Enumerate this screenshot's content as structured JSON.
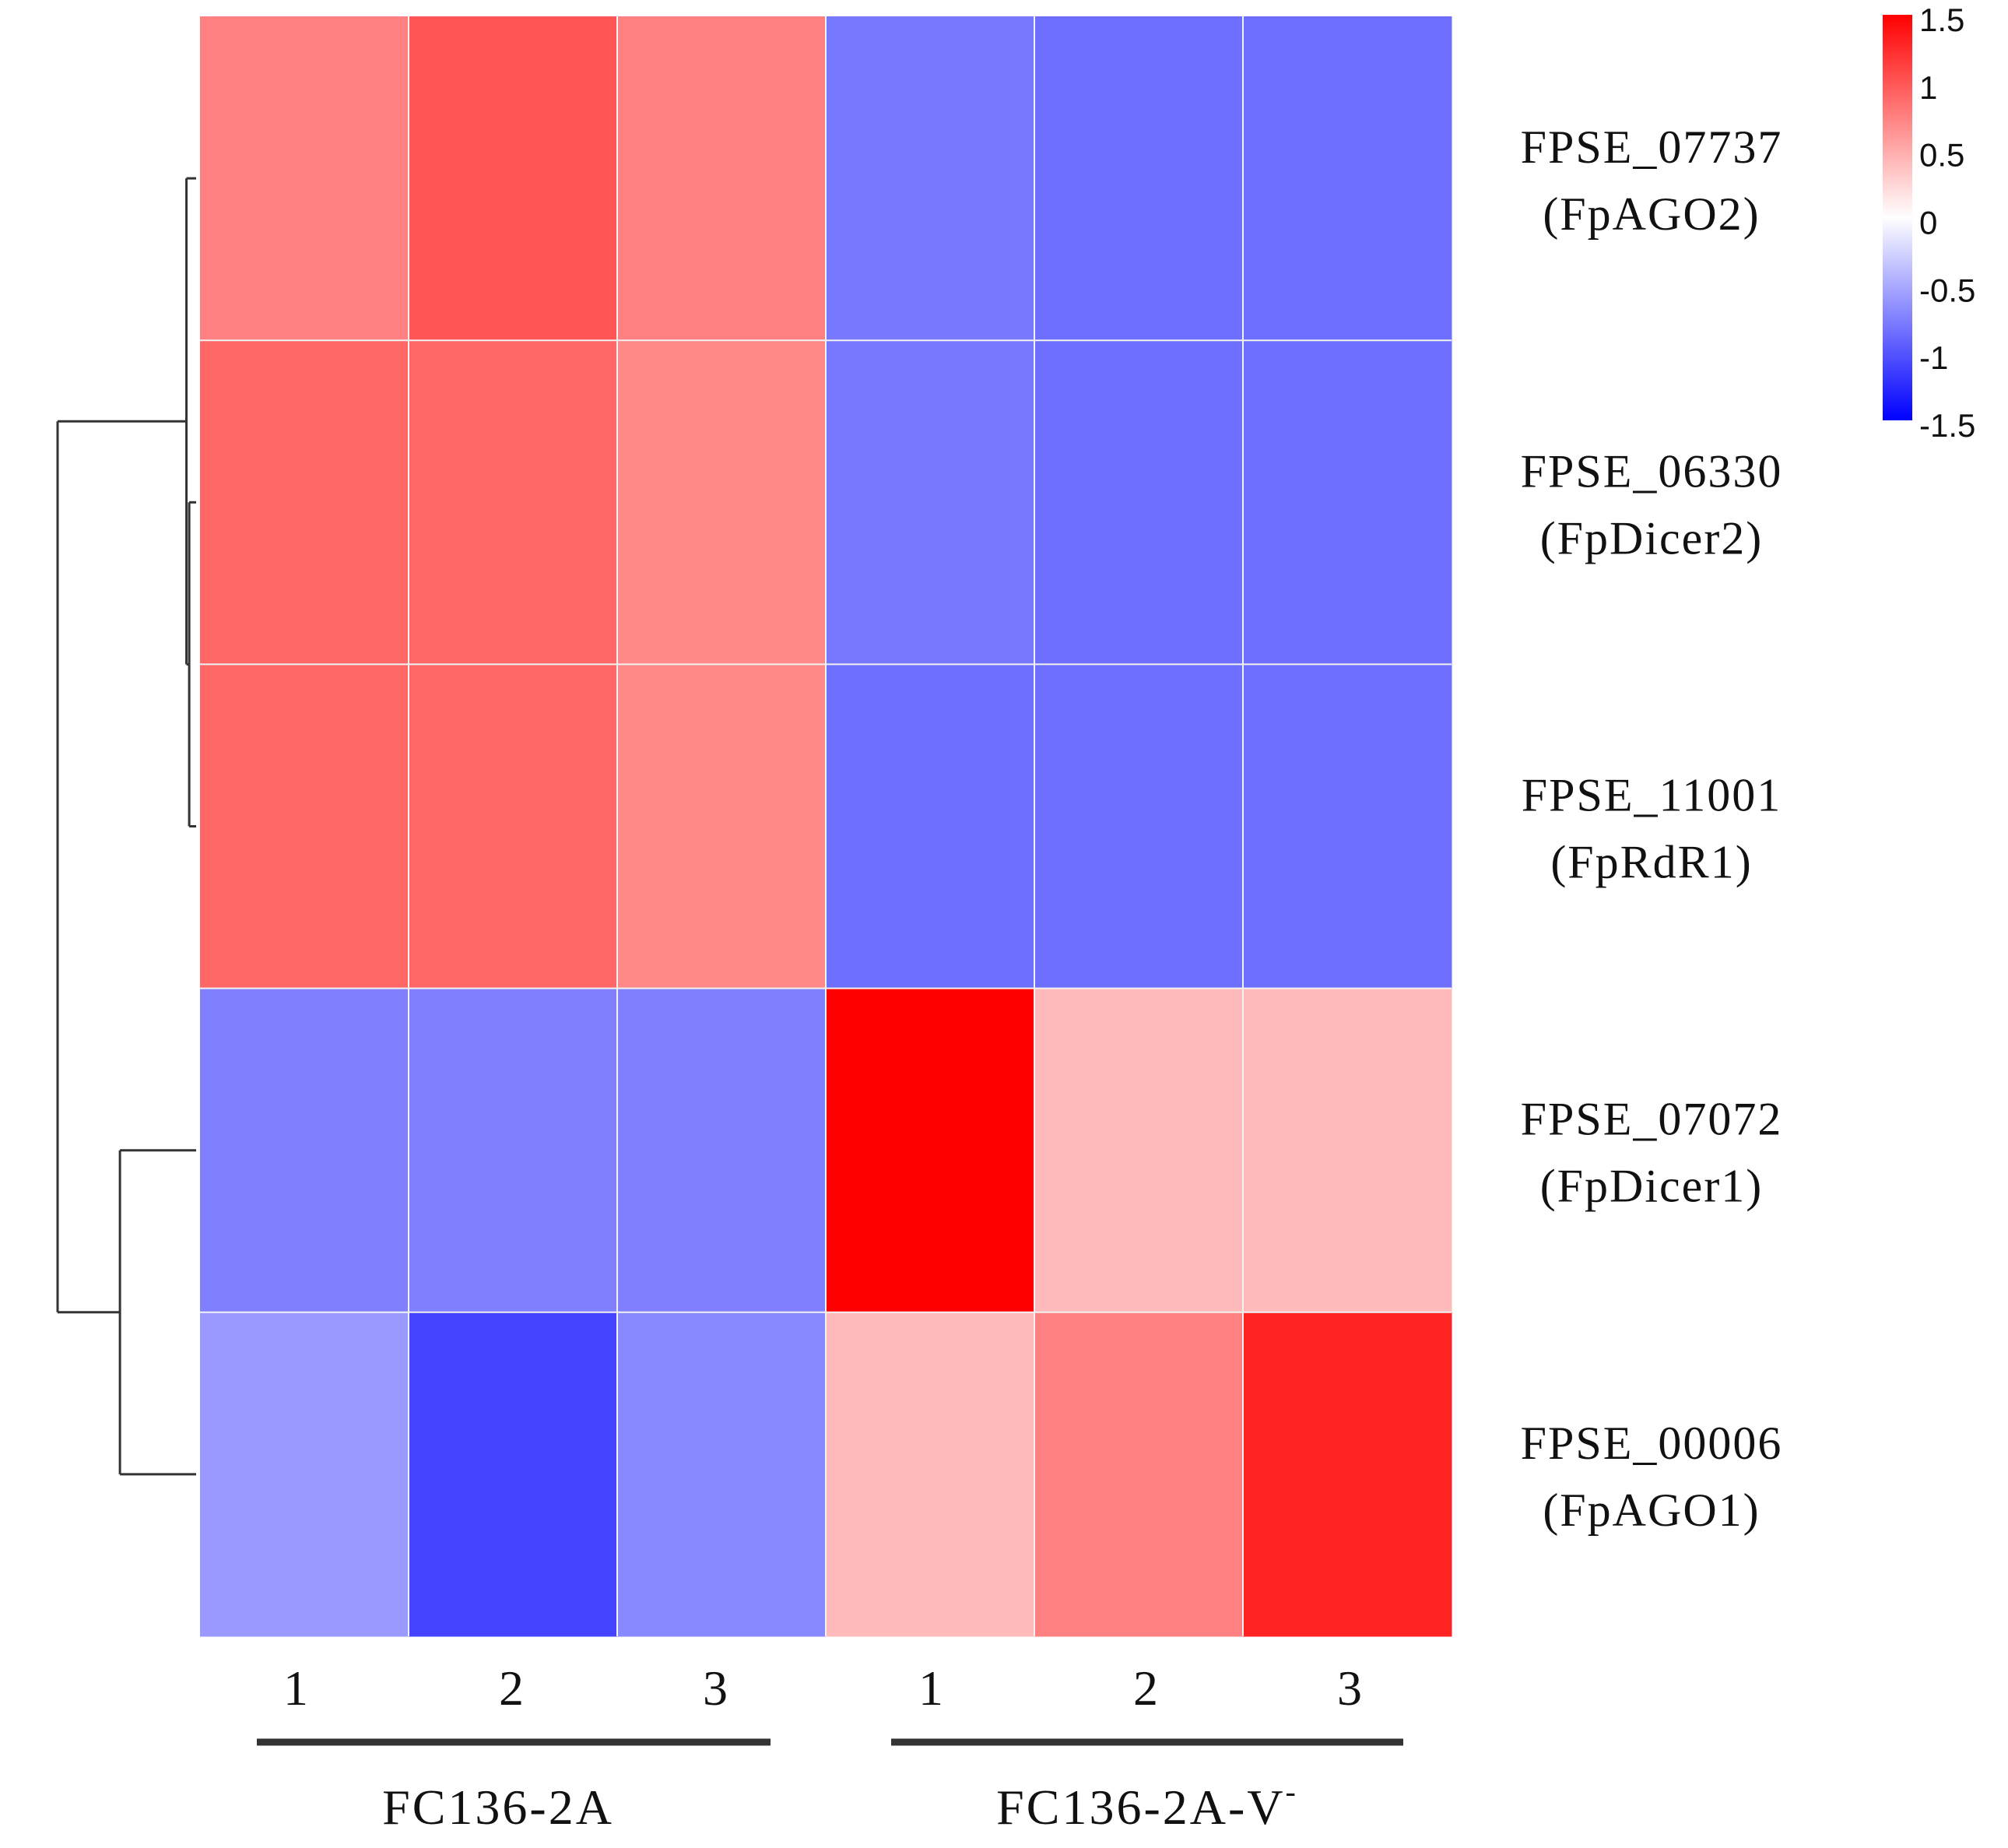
{
  "chart_data": {
    "type": "heatmap",
    "title": "",
    "rows": [
      {
        "id": "FPSE_07737",
        "alias": "(FpAGO2)"
      },
      {
        "id": "FPSE_06330",
        "alias": "(FpDicer2)"
      },
      {
        "id": "FPSE_11001",
        "alias": "(FpRdR1)"
      },
      {
        "id": "FPSE_07072",
        "alias": "(FpDicer1)"
      },
      {
        "id": "FPSE_00006",
        "alias": "(FpAGO1)"
      }
    ],
    "columns": [
      {
        "label": "1",
        "group": 0
      },
      {
        "label": "2",
        "group": 0
      },
      {
        "label": "3",
        "group": 0
      },
      {
        "label": "1",
        "group": 1
      },
      {
        "label": "2",
        "group": 1
      },
      {
        "label": "3",
        "group": 1
      }
    ],
    "groups": [
      {
        "label": "FC136-2A"
      },
      {
        "label": "FC136-2A-V",
        "superscript": "-"
      }
    ],
    "values": [
      [
        0.75,
        1.0,
        0.75,
        -0.8,
        -0.85,
        -0.85
      ],
      [
        0.9,
        0.9,
        0.7,
        -0.8,
        -0.85,
        -0.85
      ],
      [
        0.9,
        0.9,
        0.7,
        -0.85,
        -0.85,
        -0.85
      ],
      [
        -0.75,
        -0.75,
        -0.75,
        1.5,
        0.4,
        0.4
      ],
      [
        -0.6,
        -1.1,
        -0.7,
        0.4,
        0.75,
        1.3
      ]
    ],
    "color_scale": {
      "min": -1.5,
      "max": 1.5,
      "low_color": "#0000ff",
      "mid_color": "#ffffff",
      "high_color": "#ff0000",
      "ticks": [
        "1.5",
        "1",
        "0.5",
        "0",
        "-0.5",
        "-1",
        "-1.5"
      ]
    },
    "row_dendrogram": {
      "line_color": "#333333",
      "merges": [
        {
          "left": [
            1
          ],
          "right": [
            2
          ],
          "height": 0.05
        },
        {
          "left": [
            0
          ],
          "right": [
            1,
            2
          ],
          "height": 0.07
        },
        {
          "left": [
            3
          ],
          "right": [
            4
          ],
          "height": 0.55
        },
        {
          "left": [
            0,
            1,
            2
          ],
          "right": [
            3,
            4
          ],
          "height": 1.0
        }
      ]
    }
  }
}
